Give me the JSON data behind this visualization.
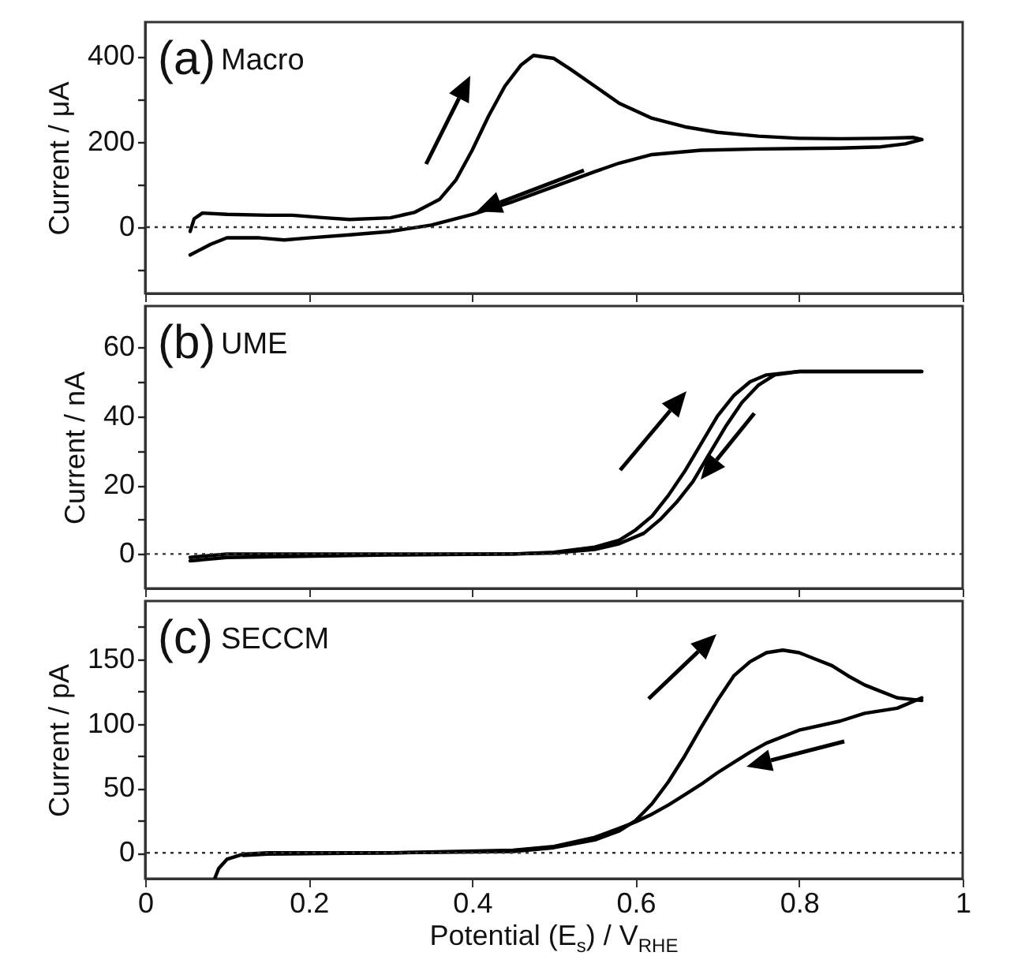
{
  "chart_data": [
    {
      "type": "line",
      "ylabel": "Current / μA",
      "annotations": [
        "(a)",
        "Macro"
      ],
      "tick_labels": "y",
      "xlim": [
        0,
        1
      ],
      "xticks": [
        0,
        0.2,
        0.4,
        0.6,
        0.8,
        1
      ],
      "ylim": [
        -155,
        480
      ],
      "yticks": [
        {
          "value": -100,
          "label": null
        },
        0,
        {
          "value": 100,
          "label": null
        },
        200,
        {
          "value": 300,
          "label": null
        },
        400
      ],
      "ref_lines": [
        {
          "axis": "y",
          "value": 0,
          "line_style": "dotted"
        }
      ],
      "series": [
        {
          "color": "#000000",
          "x": [
            0.055,
            0.06,
            0.07,
            0.1,
            0.15,
            0.18,
            0.22,
            0.25,
            0.3,
            0.33,
            0.36,
            0.38,
            0.4,
            0.42,
            0.44,
            0.46,
            0.475,
            0.5,
            0.52,
            0.55,
            0.58,
            0.62,
            0.66,
            0.7,
            0.75,
            0.8,
            0.85,
            0.9,
            0.94,
            0.95
          ],
          "values": [
            -10,
            20,
            33,
            30,
            28,
            28,
            22,
            18,
            22,
            35,
            65,
            110,
            180,
            260,
            330,
            380,
            402,
            395,
            370,
            330,
            290,
            255,
            235,
            222,
            213,
            208,
            207,
            208,
            210,
            205
          ]
        },
        {
          "color": "#000000",
          "x": [
            0.95,
            0.93,
            0.9,
            0.85,
            0.75,
            0.68,
            0.62,
            0.58,
            0.55,
            0.5,
            0.45,
            0.4,
            0.35,
            0.3,
            0.25,
            0.2,
            0.17,
            0.14,
            0.1,
            0.08,
            0.055
          ],
          "values": [
            205,
            195,
            188,
            185,
            183,
            180,
            170,
            150,
            130,
            95,
            60,
            30,
            5,
            -10,
            -18,
            -25,
            -30,
            -25,
            -25,
            -40,
            -65
          ]
        }
      ]
    },
    {
      "type": "line",
      "ylabel": "Current / nA",
      "annotations": [
        "(b)",
        "UME"
      ],
      "tick_labels": "y",
      "xlim": [
        0,
        1
      ],
      "xticks": [
        0,
        0.2,
        0.4,
        0.6,
        0.8,
        1
      ],
      "ylim": [
        -10,
        72
      ],
      "yticks": [
        0,
        {
          "value": 10,
          "label": null
        },
        20,
        {
          "value": 30,
          "label": null
        },
        40,
        {
          "value": 50,
          "label": null
        },
        60
      ],
      "ref_lines": [
        {
          "axis": "y",
          "value": 0,
          "line_style": "dotted"
        }
      ],
      "series": [
        {
          "color": "#000000",
          "x": [
            0.055,
            0.1,
            0.3,
            0.45,
            0.5,
            0.55,
            0.58,
            0.6,
            0.62,
            0.64,
            0.66,
            0.68,
            0.7,
            0.72,
            0.74,
            0.76,
            0.8,
            0.9,
            0.95
          ],
          "values": [
            -1,
            0,
            0,
            0,
            0.5,
            2,
            4,
            7,
            11,
            17,
            24,
            32,
            40,
            46,
            50,
            52,
            53,
            53,
            53
          ]
        },
        {
          "color": "#000000",
          "x": [
            0.95,
            0.85,
            0.8,
            0.77,
            0.75,
            0.73,
            0.71,
            0.69,
            0.67,
            0.65,
            0.63,
            0.61,
            0.58,
            0.55,
            0.5,
            0.45,
            0.3,
            0.1,
            0.055
          ],
          "values": [
            53,
            53,
            53,
            52,
            49,
            44,
            37,
            29,
            21,
            15,
            10,
            6,
            3,
            1.3,
            0.3,
            0,
            -0.3,
            -1,
            -2
          ]
        }
      ]
    },
    {
      "type": "line",
      "ylabel": "Current / pA",
      "xlabel": "Potential (E$_{s}$) / V$_{RHE}$",
      "annotations": [
        "(c)",
        "SECCM"
      ],
      "xlim": [
        0,
        1
      ],
      "xticks": [
        0,
        0.2,
        0.4,
        0.6,
        0.8,
        1
      ],
      "ylim": [
        -20,
        195
      ],
      "yticks": [
        0,
        {
          "value": 25,
          "label": null
        },
        50,
        {
          "value": 75,
          "label": null
        },
        100,
        {
          "value": 125,
          "label": null
        },
        150,
        {
          "value": 175,
          "label": null
        }
      ],
      "ref_lines": [
        {
          "axis": "y",
          "value": 0,
          "line_style": "dotted"
        }
      ],
      "series": [
        {
          "color": "#000000",
          "x": [
            0.085,
            0.09,
            0.1,
            0.12,
            0.15,
            0.3,
            0.45,
            0.5,
            0.55,
            0.58,
            0.6,
            0.62,
            0.64,
            0.66,
            0.68,
            0.7,
            0.72,
            0.74,
            0.76,
            0.78,
            0.8,
            0.82,
            0.84,
            0.86,
            0.88,
            0.9,
            0.92,
            0.95
          ],
          "values": [
            -20,
            -12,
            -5,
            -1,
            0,
            0,
            1,
            4,
            10,
            17,
            25,
            38,
            55,
            75,
            97,
            118,
            137,
            148,
            155,
            157,
            155,
            150,
            145,
            137,
            130,
            125,
            120,
            118
          ]
        },
        {
          "color": "#000000",
          "x": [
            0.95,
            0.92,
            0.88,
            0.85,
            0.8,
            0.76,
            0.74,
            0.72,
            0.7,
            0.68,
            0.66,
            0.64,
            0.62,
            0.6,
            0.58,
            0.55,
            0.5,
            0.45,
            0.3,
            0.15,
            0.12
          ],
          "values": [
            120,
            112,
            108,
            102,
            95,
            85,
            78,
            70,
            62,
            53,
            45,
            37,
            30,
            24,
            19,
            12,
            5,
            2,
            0,
            -1,
            -2
          ]
        }
      ]
    }
  ]
}
